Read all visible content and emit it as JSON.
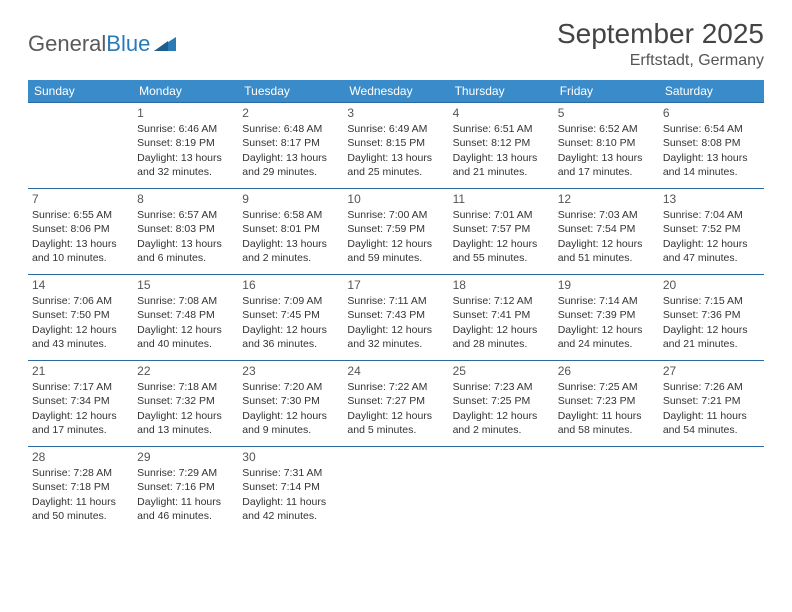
{
  "logo": {
    "text1": "General",
    "text2": "Blue"
  },
  "title": "September 2025",
  "location": "Erftstadt, Germany",
  "day_headers": [
    "Sunday",
    "Monday",
    "Tuesday",
    "Wednesday",
    "Thursday",
    "Friday",
    "Saturday"
  ],
  "colors": {
    "header_bg": "#3a8bc9",
    "header_text": "#ffffff",
    "row_border": "#2a6a9e",
    "logo_gray": "#5a5a5a",
    "logo_blue": "#2a7ab8",
    "body_text": "#333333"
  },
  "weeks": [
    [
      null,
      {
        "n": "1",
        "sr": "Sunrise: 6:46 AM",
        "ss": "Sunset: 8:19 PM",
        "dl": "Daylight: 13 hours and 32 minutes."
      },
      {
        "n": "2",
        "sr": "Sunrise: 6:48 AM",
        "ss": "Sunset: 8:17 PM",
        "dl": "Daylight: 13 hours and 29 minutes."
      },
      {
        "n": "3",
        "sr": "Sunrise: 6:49 AM",
        "ss": "Sunset: 8:15 PM",
        "dl": "Daylight: 13 hours and 25 minutes."
      },
      {
        "n": "4",
        "sr": "Sunrise: 6:51 AM",
        "ss": "Sunset: 8:12 PM",
        "dl": "Daylight: 13 hours and 21 minutes."
      },
      {
        "n": "5",
        "sr": "Sunrise: 6:52 AM",
        "ss": "Sunset: 8:10 PM",
        "dl": "Daylight: 13 hours and 17 minutes."
      },
      {
        "n": "6",
        "sr": "Sunrise: 6:54 AM",
        "ss": "Sunset: 8:08 PM",
        "dl": "Daylight: 13 hours and 14 minutes."
      }
    ],
    [
      {
        "n": "7",
        "sr": "Sunrise: 6:55 AM",
        "ss": "Sunset: 8:06 PM",
        "dl": "Daylight: 13 hours and 10 minutes."
      },
      {
        "n": "8",
        "sr": "Sunrise: 6:57 AM",
        "ss": "Sunset: 8:03 PM",
        "dl": "Daylight: 13 hours and 6 minutes."
      },
      {
        "n": "9",
        "sr": "Sunrise: 6:58 AM",
        "ss": "Sunset: 8:01 PM",
        "dl": "Daylight: 13 hours and 2 minutes."
      },
      {
        "n": "10",
        "sr": "Sunrise: 7:00 AM",
        "ss": "Sunset: 7:59 PM",
        "dl": "Daylight: 12 hours and 59 minutes."
      },
      {
        "n": "11",
        "sr": "Sunrise: 7:01 AM",
        "ss": "Sunset: 7:57 PM",
        "dl": "Daylight: 12 hours and 55 minutes."
      },
      {
        "n": "12",
        "sr": "Sunrise: 7:03 AM",
        "ss": "Sunset: 7:54 PM",
        "dl": "Daylight: 12 hours and 51 minutes."
      },
      {
        "n": "13",
        "sr": "Sunrise: 7:04 AM",
        "ss": "Sunset: 7:52 PM",
        "dl": "Daylight: 12 hours and 47 minutes."
      }
    ],
    [
      {
        "n": "14",
        "sr": "Sunrise: 7:06 AM",
        "ss": "Sunset: 7:50 PM",
        "dl": "Daylight: 12 hours and 43 minutes."
      },
      {
        "n": "15",
        "sr": "Sunrise: 7:08 AM",
        "ss": "Sunset: 7:48 PM",
        "dl": "Daylight: 12 hours and 40 minutes."
      },
      {
        "n": "16",
        "sr": "Sunrise: 7:09 AM",
        "ss": "Sunset: 7:45 PM",
        "dl": "Daylight: 12 hours and 36 minutes."
      },
      {
        "n": "17",
        "sr": "Sunrise: 7:11 AM",
        "ss": "Sunset: 7:43 PM",
        "dl": "Daylight: 12 hours and 32 minutes."
      },
      {
        "n": "18",
        "sr": "Sunrise: 7:12 AM",
        "ss": "Sunset: 7:41 PM",
        "dl": "Daylight: 12 hours and 28 minutes."
      },
      {
        "n": "19",
        "sr": "Sunrise: 7:14 AM",
        "ss": "Sunset: 7:39 PM",
        "dl": "Daylight: 12 hours and 24 minutes."
      },
      {
        "n": "20",
        "sr": "Sunrise: 7:15 AM",
        "ss": "Sunset: 7:36 PM",
        "dl": "Daylight: 12 hours and 21 minutes."
      }
    ],
    [
      {
        "n": "21",
        "sr": "Sunrise: 7:17 AM",
        "ss": "Sunset: 7:34 PM",
        "dl": "Daylight: 12 hours and 17 minutes."
      },
      {
        "n": "22",
        "sr": "Sunrise: 7:18 AM",
        "ss": "Sunset: 7:32 PM",
        "dl": "Daylight: 12 hours and 13 minutes."
      },
      {
        "n": "23",
        "sr": "Sunrise: 7:20 AM",
        "ss": "Sunset: 7:30 PM",
        "dl": "Daylight: 12 hours and 9 minutes."
      },
      {
        "n": "24",
        "sr": "Sunrise: 7:22 AM",
        "ss": "Sunset: 7:27 PM",
        "dl": "Daylight: 12 hours and 5 minutes."
      },
      {
        "n": "25",
        "sr": "Sunrise: 7:23 AM",
        "ss": "Sunset: 7:25 PM",
        "dl": "Daylight: 12 hours and 2 minutes."
      },
      {
        "n": "26",
        "sr": "Sunrise: 7:25 AM",
        "ss": "Sunset: 7:23 PM",
        "dl": "Daylight: 11 hours and 58 minutes."
      },
      {
        "n": "27",
        "sr": "Sunrise: 7:26 AM",
        "ss": "Sunset: 7:21 PM",
        "dl": "Daylight: 11 hours and 54 minutes."
      }
    ],
    [
      {
        "n": "28",
        "sr": "Sunrise: 7:28 AM",
        "ss": "Sunset: 7:18 PM",
        "dl": "Daylight: 11 hours and 50 minutes."
      },
      {
        "n": "29",
        "sr": "Sunrise: 7:29 AM",
        "ss": "Sunset: 7:16 PM",
        "dl": "Daylight: 11 hours and 46 minutes."
      },
      {
        "n": "30",
        "sr": "Sunrise: 7:31 AM",
        "ss": "Sunset: 7:14 PM",
        "dl": "Daylight: 11 hours and 42 minutes."
      },
      null,
      null,
      null,
      null
    ]
  ]
}
